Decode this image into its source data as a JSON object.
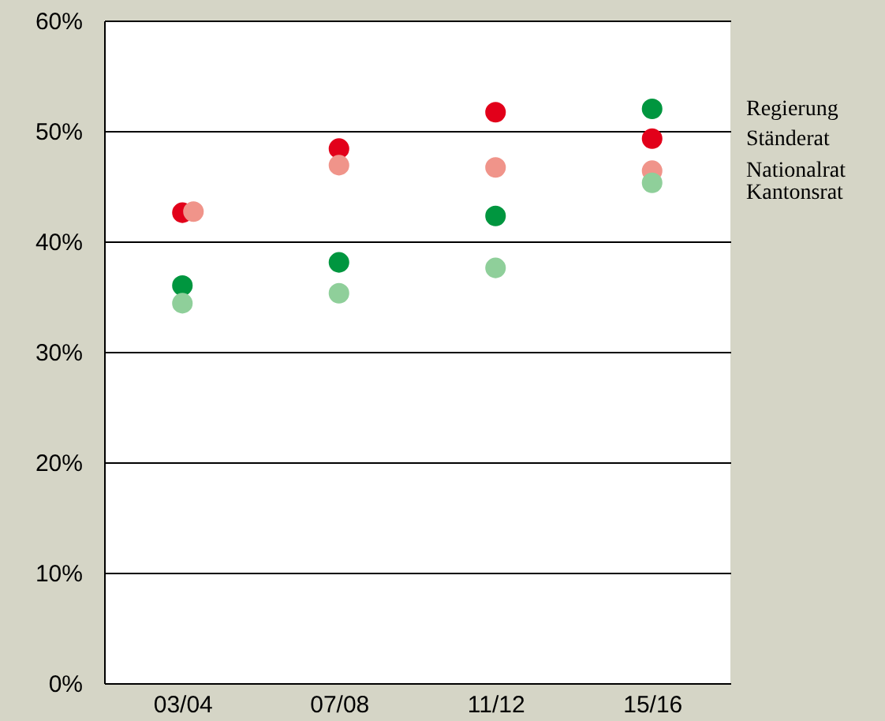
{
  "chart_data": {
    "type": "scatter",
    "categories": [
      "03/04",
      "07/08",
      "11/12",
      "15/16"
    ],
    "series": [
      {
        "name": "Regierung",
        "color": "#00963f",
        "values": [
          36.0,
          38.1,
          42.3,
          52.0
        ]
      },
      {
        "name": "Ständerat",
        "color": "#e2001a",
        "values": [
          42.6,
          48.4,
          51.7,
          49.3
        ]
      },
      {
        "name": "Nationalrat",
        "color": "#f0948a",
        "values": [
          42.7,
          46.9,
          46.7,
          46.4
        ]
      },
      {
        "name": "Kantonsrat",
        "color": "#8fcf9a",
        "values": [
          34.4,
          35.3,
          37.6,
          45.3
        ]
      }
    ],
    "ylim": [
      0,
      60
    ],
    "yticks": [
      {
        "value": 0,
        "label": "0%"
      },
      {
        "value": 10,
        "label": "10%"
      },
      {
        "value": 20,
        "label": "20%"
      },
      {
        "value": 30,
        "label": "30%"
      },
      {
        "value": 40,
        "label": "40%"
      },
      {
        "value": 50,
        "label": "50%"
      },
      {
        "value": 60,
        "label": "60%"
      }
    ],
    "grid": "y",
    "marker": "circle"
  }
}
